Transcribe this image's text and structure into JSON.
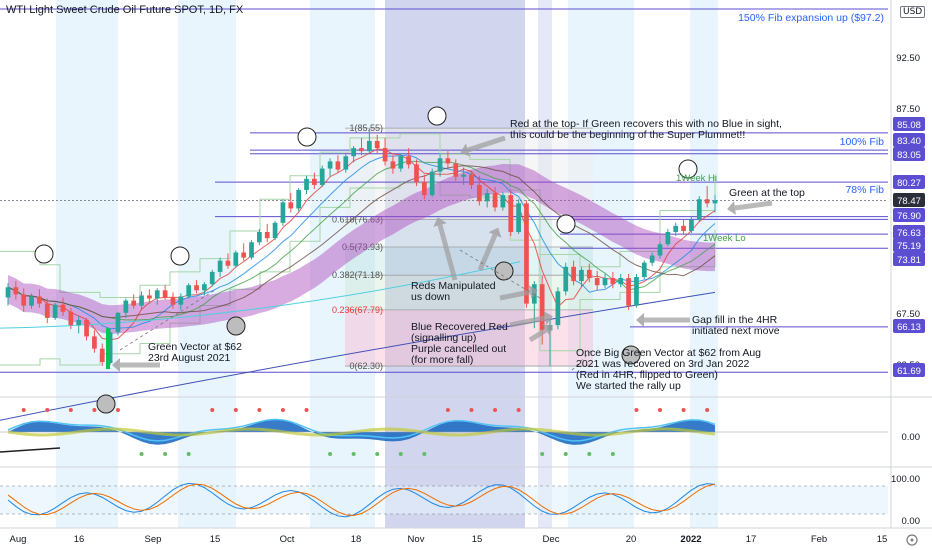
{
  "title": "WTI Light Sweet Crude Oil Future SPOT, 1D, FX",
  "currency": "USD",
  "chart_data": {
    "type": "candlestick",
    "main": {
      "price_axis": {
        "min": 60.0,
        "max": 97.5,
        "ticks": [
          "92.50",
          "87.50",
          "67.50",
          "62.50"
        ]
      },
      "time_axis": {
        "labels": [
          "Aug",
          "16",
          "Sep",
          "15",
          "Oct",
          "18",
          "Nov",
          "15",
          "Dec",
          "20",
          "2022",
          "17",
          "Feb",
          "15"
        ]
      },
      "fib_levels": [
        {
          "label": "150% Fib expansion up ($97.2)",
          "price": 97.2
        },
        {
          "label": "100% Fib",
          "price": 83.75
        },
        {
          "label": "78% Fib",
          "price": 80.27
        }
      ],
      "fib_retracement": [
        {
          "label": "1(85.55)",
          "price": 85.55
        },
        {
          "label": "0.618(76.63)",
          "price": 76.63
        },
        {
          "label": "0.5(73.93)",
          "price": 73.93
        },
        {
          "label": "0.382(71.18)",
          "price": 71.18
        },
        {
          "label": "0.236(67.79)",
          "price": 67.79
        },
        {
          "label": "0(62.30)",
          "price": 62.3
        }
      ],
      "price_badges": [
        {
          "value": "85.08",
          "price": 85.08,
          "style": "outline"
        },
        {
          "value": "83.40",
          "price": 83.4,
          "style": "outline"
        },
        {
          "value": "83.05",
          "price": 83.05,
          "style": "outline"
        },
        {
          "value": "80.27",
          "price": 80.27,
          "style": "outline"
        },
        {
          "value": "78.47",
          "price": 78.47,
          "style": "dark"
        },
        {
          "value": "76.90",
          "price": 76.9,
          "style": "outline"
        },
        {
          "value": "76.63",
          "price": 76.63,
          "style": "outline"
        },
        {
          "value": "75.19",
          "price": 75.19,
          "style": "outline"
        },
        {
          "value": "73.81",
          "price": 73.81,
          "style": "outline"
        },
        {
          "value": "66.13",
          "price": 66.13,
          "style": "outline"
        },
        {
          "value": "61.69",
          "price": 61.69,
          "style": "outline"
        }
      ],
      "week_labels": [
        {
          "text": "1Week Hi",
          "price": 80.9
        },
        {
          "text": "1Week Lo",
          "price": 75.6
        }
      ],
      "annotations": [
        {
          "text": "Red at the top- If Green recovers this with no Blue in sight, this could be the beginning of the Super Plummet!!"
        },
        {
          "text": "Green at the top"
        },
        {
          "text": "Reds Manipulated us down"
        },
        {
          "text": "Blue Recovered Red (signalling up) Purple cancelled out (for more fall)"
        },
        {
          "text": "Green Vector at $62 23rd August 2021"
        },
        {
          "text": "Gap fill in the 4HR initiated next move"
        },
        {
          "text": "Once Big Green Vector at $62 from Aug 2021 was recovered on 3rd Jan 2022 (Red in 4HR, flipped to Green) We started the rally up"
        }
      ]
    },
    "oscillator_axis": {
      "ticks": [
        "0.00"
      ]
    },
    "stoch_axis": {
      "ticks": [
        "100.00",
        "0.00"
      ]
    },
    "candles": [
      [
        69.0,
        70.4,
        68.2,
        70.0
      ],
      [
        70.0,
        70.6,
        68.8,
        69.3
      ],
      [
        69.3,
        69.9,
        67.6,
        68.2
      ],
      [
        68.2,
        69.4,
        67.9,
        69.1
      ],
      [
        69.1,
        69.8,
        68.0,
        68.4
      ],
      [
        68.4,
        68.9,
        66.5,
        67.0
      ],
      [
        67.0,
        68.5,
        66.8,
        68.3
      ],
      [
        68.3,
        69.0,
        67.2,
        67.6
      ],
      [
        67.6,
        68.0,
        65.9,
        66.3
      ],
      [
        66.3,
        67.2,
        65.5,
        66.8
      ],
      [
        66.8,
        67.0,
        64.8,
        65.2
      ],
      [
        65.2,
        65.8,
        63.6,
        64.0
      ],
      [
        64.0,
        64.5,
        62.3,
        62.7
      ],
      [
        62.6,
        65.9,
        62.4,
        65.6
      ],
      [
        65.6,
        67.6,
        65.3,
        67.5
      ],
      [
        67.5,
        68.9,
        67.0,
        68.7
      ],
      [
        68.7,
        69.3,
        67.9,
        68.2
      ],
      [
        68.2,
        69.6,
        67.8,
        69.2
      ],
      [
        69.2,
        69.8,
        68.4,
        68.9
      ],
      [
        68.9,
        69.9,
        68.3,
        69.7
      ],
      [
        69.7,
        70.2,
        68.8,
        69.0
      ],
      [
        69.0,
        69.5,
        67.9,
        68.3
      ],
      [
        68.3,
        69.4,
        67.8,
        69.1
      ],
      [
        69.1,
        70.4,
        68.9,
        70.2
      ],
      [
        70.2,
        70.7,
        69.4,
        69.7
      ],
      [
        69.7,
        70.5,
        69.2,
        70.3
      ],
      [
        70.3,
        71.7,
        70.1,
        71.5
      ],
      [
        71.5,
        72.9,
        71.0,
        72.6
      ],
      [
        72.6,
        73.3,
        71.8,
        72.1
      ],
      [
        72.1,
        73.6,
        71.9,
        73.4
      ],
      [
        73.4,
        74.3,
        72.6,
        72.9
      ],
      [
        72.9,
        74.6,
        72.7,
        74.4
      ],
      [
        74.4,
        75.7,
        74.1,
        75.4
      ],
      [
        75.4,
        76.2,
        74.4,
        74.8
      ],
      [
        74.8,
        76.5,
        74.6,
        76.3
      ],
      [
        76.3,
        78.6,
        76.0,
        78.3
      ],
      [
        78.3,
        79.2,
        77.3,
        77.7
      ],
      [
        77.7,
        79.7,
        77.4,
        79.5
      ],
      [
        79.5,
        80.9,
        79.1,
        80.6
      ],
      [
        80.6,
        81.2,
        79.6,
        80.0
      ],
      [
        80.0,
        81.9,
        79.8,
        81.6
      ],
      [
        81.6,
        82.6,
        80.8,
        82.3
      ],
      [
        82.3,
        82.9,
        81.2,
        81.5
      ],
      [
        81.5,
        83.0,
        81.2,
        82.8
      ],
      [
        82.8,
        83.8,
        82.2,
        83.6
      ],
      [
        83.6,
        84.6,
        82.9,
        83.3
      ],
      [
        83.3,
        85.5,
        83.0,
        84.3
      ],
      [
        84.3,
        84.9,
        83.1,
        83.6
      ],
      [
        83.6,
        84.6,
        81.9,
        82.3
      ],
      [
        82.3,
        82.9,
        81.1,
        81.6
      ],
      [
        81.6,
        83.1,
        81.3,
        82.8
      ],
      [
        82.8,
        83.6,
        81.6,
        82.0
      ],
      [
        82.0,
        82.5,
        79.9,
        80.3
      ],
      [
        80.3,
        81.0,
        78.6,
        79.0
      ],
      [
        79.0,
        81.6,
        78.8,
        81.3
      ],
      [
        81.3,
        83.0,
        80.8,
        82.6
      ],
      [
        82.6,
        83.3,
        81.7,
        82.1
      ],
      [
        82.1,
        82.5,
        80.4,
        80.8
      ],
      [
        80.8,
        81.7,
        80.0,
        81.0
      ],
      [
        81.0,
        81.4,
        79.6,
        80.0
      ],
      [
        80.0,
        80.9,
        78.0,
        78.4
      ],
      [
        78.4,
        79.6,
        77.8,
        79.2
      ],
      [
        79.2,
        79.8,
        77.4,
        77.8
      ],
      [
        77.8,
        79.3,
        77.5,
        79.0
      ],
      [
        79.0,
        79.5,
        75.0,
        75.4
      ],
      [
        75.4,
        78.6,
        75.2,
        78.2
      ],
      [
        78.2,
        78.5,
        68.0,
        68.4
      ],
      [
        68.4,
        70.6,
        66.0,
        70.3
      ],
      [
        70.3,
        71.1,
        64.4,
        65.8
      ],
      [
        65.8,
        66.8,
        62.3,
        66.3
      ],
      [
        66.3,
        70.0,
        65.9,
        69.6
      ],
      [
        69.6,
        72.4,
        69.2,
        72.0
      ],
      [
        72.0,
        72.6,
        70.2,
        70.6
      ],
      [
        70.6,
        72.0,
        70.0,
        71.7
      ],
      [
        71.7,
        72.3,
        70.5,
        70.9
      ],
      [
        70.9,
        71.6,
        69.7,
        70.2
      ],
      [
        70.2,
        71.3,
        69.9,
        70.9
      ],
      [
        70.9,
        71.5,
        69.9,
        70.3
      ],
      [
        70.3,
        71.3,
        70.0,
        70.9
      ],
      [
        70.9,
        71.3,
        67.8,
        68.2
      ],
      [
        68.2,
        71.3,
        68.0,
        71.0
      ],
      [
        71.0,
        72.6,
        70.8,
        72.4
      ],
      [
        72.4,
        73.4,
        72.1,
        73.1
      ],
      [
        73.1,
        74.4,
        72.8,
        74.2
      ],
      [
        74.2,
        75.7,
        74.0,
        75.4
      ],
      [
        75.4,
        76.3,
        75.0,
        76.0
      ],
      [
        76.0,
        76.6,
        75.1,
        75.5
      ],
      [
        75.5,
        76.9,
        75.3,
        76.6
      ],
      [
        76.6,
        78.9,
        76.4,
        78.6
      ],
      [
        78.6,
        79.9,
        77.8,
        78.2
      ],
      [
        78.2,
        79.0,
        77.3,
        78.5
      ]
    ]
  }
}
